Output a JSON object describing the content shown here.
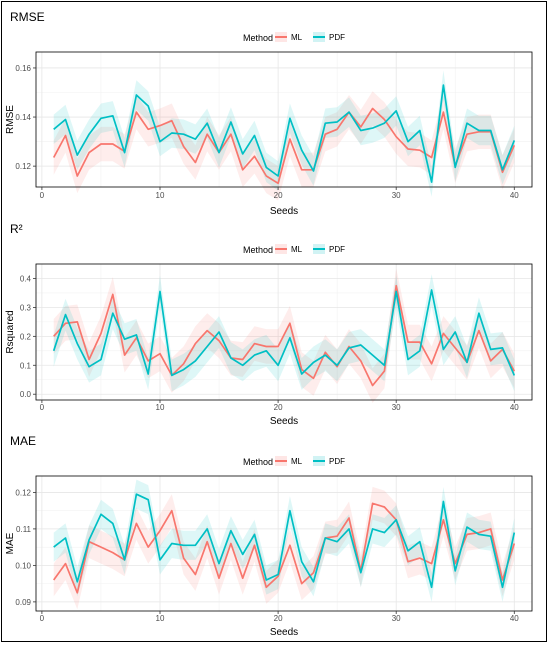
{
  "chart_data": [
    {
      "type": "line",
      "title": "RMSE",
      "xlabel": "Seeds",
      "ylabel": "RMSE",
      "legend_title": "Method",
      "legend_placement": "top",
      "grid": true,
      "xlim": [
        -0.5,
        41.5
      ],
      "ylim": [
        0.1115,
        0.1665
      ],
      "xticks": [
        0,
        10,
        20,
        30,
        40
      ],
      "x_tick_labels": [
        "0",
        "10",
        "20",
        "30",
        "40"
      ],
      "yticks": [
        0.12,
        0.14,
        0.16
      ],
      "y_tick_labels": [
        "0.12",
        "0.14",
        "0.16"
      ],
      "x": [
        1,
        2,
        3,
        4,
        5,
        6,
        7,
        8,
        9,
        10,
        11,
        12,
        13,
        14,
        15,
        16,
        17,
        18,
        19,
        20,
        21,
        22,
        23,
        24,
        25,
        26,
        27,
        28,
        29,
        30,
        31,
        32,
        33,
        34,
        35,
        36,
        37,
        38,
        39,
        40
      ],
      "series": [
        {
          "name": "ML",
          "color": "#f8766d",
          "values": [
            0.1235,
            0.1325,
            0.116,
            0.1255,
            0.129,
            0.129,
            0.126,
            0.142,
            0.135,
            0.1365,
            0.1385,
            0.128,
            0.1215,
            0.133,
            0.1255,
            0.133,
            0.1185,
            0.124,
            0.116,
            0.113,
            0.131,
            0.1185,
            0.1185,
            0.133,
            0.135,
            0.142,
            0.136,
            0.1435,
            0.139,
            0.132,
            0.127,
            0.1265,
            0.1235,
            0.142,
            0.12,
            0.133,
            0.134,
            0.134,
            0.1175,
            0.1285
          ],
          "band": 0.007
        },
        {
          "name": "PDF",
          "color": "#00bfc4",
          "values": [
            0.135,
            0.139,
            0.1245,
            0.133,
            0.1395,
            0.1405,
            0.1255,
            0.149,
            0.1445,
            0.13,
            0.1335,
            0.133,
            0.131,
            0.1375,
            0.1255,
            0.138,
            0.125,
            0.1325,
            0.1195,
            0.116,
            0.1395,
            0.1265,
            0.118,
            0.1375,
            0.138,
            0.142,
            0.1345,
            0.1355,
            0.1375,
            0.1425,
            0.13,
            0.1345,
            0.1135,
            0.153,
            0.1195,
            0.1375,
            0.1345,
            0.1345,
            0.1185,
            0.1305
          ],
          "band": 0.006
        }
      ]
    },
    {
      "type": "line",
      "title": "R²",
      "xlabel": "Seeds",
      "ylabel": "Rsquared",
      "legend_title": "Method",
      "legend_placement": "top",
      "grid": true,
      "xlim": [
        -0.5,
        41.5
      ],
      "ylim": [
        -0.02,
        0.45
      ],
      "xticks": [
        0,
        10,
        20,
        30,
        40
      ],
      "x_tick_labels": [
        "0",
        "10",
        "20",
        "30",
        "40"
      ],
      "yticks": [
        0.0,
        0.1,
        0.2,
        0.3,
        0.4
      ],
      "y_tick_labels": [
        "0.0",
        "0.1",
        "0.2",
        "0.3",
        "0.4"
      ],
      "x": [
        1,
        2,
        3,
        4,
        5,
        6,
        7,
        8,
        9,
        10,
        11,
        12,
        13,
        14,
        15,
        16,
        17,
        18,
        19,
        20,
        21,
        22,
        23,
        24,
        25,
        26,
        27,
        28,
        29,
        30,
        31,
        32,
        33,
        34,
        35,
        36,
        37,
        38,
        39,
        40
      ],
      "series": [
        {
          "name": "ML",
          "color": "#f8766d",
          "values": [
            0.2,
            0.245,
            0.25,
            0.12,
            0.21,
            0.345,
            0.135,
            0.195,
            0.115,
            0.14,
            0.065,
            0.105,
            0.175,
            0.22,
            0.185,
            0.125,
            0.12,
            0.175,
            0.165,
            0.165,
            0.245,
            0.085,
            0.055,
            0.145,
            0.095,
            0.165,
            0.115,
            0.03,
            0.08,
            0.375,
            0.18,
            0.18,
            0.105,
            0.21,
            0.16,
            0.11,
            0.22,
            0.115,
            0.155,
            0.08
          ],
          "band": 0.06
        },
        {
          "name": "PDF",
          "color": "#00bfc4",
          "values": [
            0.15,
            0.275,
            0.175,
            0.095,
            0.12,
            0.28,
            0.19,
            0.205,
            0.07,
            0.355,
            0.065,
            0.085,
            0.115,
            0.165,
            0.215,
            0.125,
            0.1,
            0.135,
            0.15,
            0.1,
            0.195,
            0.07,
            0.11,
            0.135,
            0.1,
            0.16,
            0.17,
            0.135,
            0.1,
            0.355,
            0.12,
            0.15,
            0.36,
            0.155,
            0.215,
            0.11,
            0.28,
            0.155,
            0.16,
            0.065
          ],
          "band": 0.055
        }
      ]
    },
    {
      "type": "line",
      "title": "MAE",
      "xlabel": "Seeds",
      "ylabel": "MAE",
      "legend_title": "Method",
      "legend_placement": "top",
      "grid": true,
      "xlim": [
        -0.5,
        41.5
      ],
      "ylim": [
        0.0875,
        0.1245
      ],
      "xticks": [
        0,
        10,
        20,
        30,
        40
      ],
      "x_tick_labels": [
        "0",
        "10",
        "20",
        "30",
        "40"
      ],
      "yticks": [
        0.09,
        0.1,
        0.11,
        0.12
      ],
      "y_tick_labels": [
        "0.09",
        "0.10",
        "0.11",
        "0.12"
      ],
      "x": [
        1,
        2,
        3,
        4,
        5,
        6,
        7,
        8,
        9,
        10,
        11,
        12,
        13,
        14,
        15,
        16,
        17,
        18,
        19,
        20,
        21,
        22,
        23,
        24,
        25,
        26,
        27,
        28,
        29,
        30,
        31,
        32,
        33,
        34,
        35,
        36,
        37,
        38,
        39,
        40
      ],
      "series": [
        {
          "name": "ML",
          "color": "#f8766d",
          "values": [
            0.096,
            0.1005,
            0.0925,
            0.1065,
            0.105,
            0.1035,
            0.1015,
            0.1115,
            0.105,
            0.1095,
            0.115,
            0.102,
            0.0975,
            0.1065,
            0.0965,
            0.106,
            0.0965,
            0.1055,
            0.094,
            0.097,
            0.1055,
            0.095,
            0.098,
            0.1075,
            0.108,
            0.113,
            0.0985,
            0.117,
            0.116,
            0.1125,
            0.101,
            0.102,
            0.1005,
            0.1125,
            0.1005,
            0.1085,
            0.109,
            0.11,
            0.096,
            0.106
          ],
          "band": 0.0045
        },
        {
          "name": "PDF",
          "color": "#00bfc4",
          "values": [
            0.105,
            0.1075,
            0.0955,
            0.107,
            0.114,
            0.1115,
            0.1015,
            0.1195,
            0.118,
            0.1015,
            0.106,
            0.1055,
            0.1055,
            0.11,
            0.1005,
            0.1095,
            0.103,
            0.1085,
            0.096,
            0.0975,
            0.115,
            0.101,
            0.0955,
            0.1075,
            0.1065,
            0.11,
            0.098,
            0.11,
            0.109,
            0.1125,
            0.104,
            0.1065,
            0.094,
            0.1175,
            0.0985,
            0.1105,
            0.1085,
            0.108,
            0.094,
            0.109
          ],
          "band": 0.004
        }
      ]
    }
  ]
}
